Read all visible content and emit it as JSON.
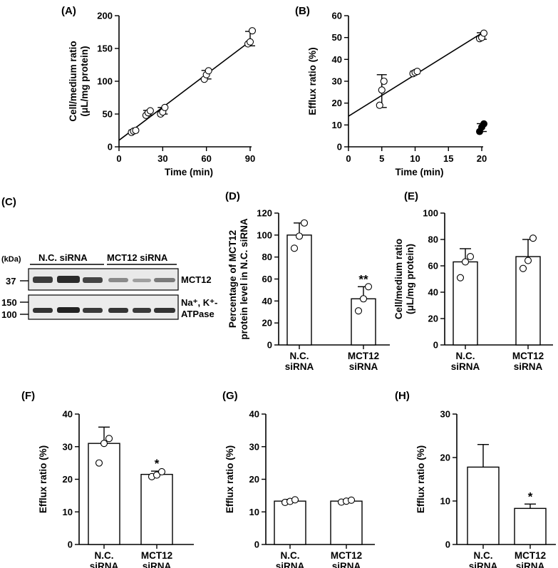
{
  "panels": {
    "A": "(A)",
    "B": "(B)",
    "C": "(C)",
    "D": "(D)",
    "E": "(E)",
    "F": "(F)",
    "G": "(G)",
    "H": "(H)"
  },
  "blot": {
    "kda_label": "(kDa)",
    "lane_group_1": "N.C. siRNA",
    "lane_group_2": "MCT12 siRNA",
    "marker_37": "37",
    "marker_150": "150",
    "marker_100": "100",
    "protein_1": "MCT12",
    "protein_2_line1": "Na⁺, K⁺-",
    "protein_2_line2": "ATPase"
  },
  "chart_data": [
    {
      "id": "A",
      "type": "scatter",
      "xlabel": "Time (min)",
      "ylabel_lines": [
        "Cell/medium ratio",
        "(μL/mg protein)"
      ],
      "xlim": [
        0,
        90
      ],
      "ylim": [
        0,
        200
      ],
      "xticks": [
        0,
        30,
        60,
        90
      ],
      "yticks": [
        0,
        50,
        100,
        150,
        200
      ],
      "fit_line": {
        "x": [
          0,
          90
        ],
        "y": [
          10,
          161
        ]
      },
      "points": [
        {
          "x": 10,
          "values": [
            22,
            24,
            25
          ],
          "mean": 24,
          "sd": 1.5
        },
        {
          "x": 20,
          "values": [
            48,
            52,
            55
          ],
          "mean": 52,
          "sd": 3.5
        },
        {
          "x": 30,
          "values": [
            50,
            53,
            60
          ],
          "mean": 55,
          "sd": 5
        },
        {
          "x": 60,
          "values": [
            103,
            110,
            116
          ],
          "mean": 110,
          "sd": 6.5
        },
        {
          "x": 90,
          "values": [
            157,
            160,
            177
          ],
          "mean": 165,
          "sd": 11
        }
      ]
    },
    {
      "id": "B",
      "type": "scatter",
      "xlabel": "Time (min)",
      "ylabel_lines": [
        "Efflux ratio (%)"
      ],
      "xlim": [
        0,
        20
      ],
      "ylim": [
        0,
        60
      ],
      "xticks": [
        0,
        5,
        10,
        15,
        20
      ],
      "yticks": [
        0,
        10,
        20,
        30,
        40,
        50,
        60
      ],
      "fit_line": {
        "x": [
          0,
          20
        ],
        "y": [
          14,
          52
        ]
      },
      "points": [
        {
          "x": 5,
          "values": [
            19,
            26,
            30
          ],
          "mean": 25.5,
          "sd": 7.5
        },
        {
          "x": 10,
          "values": [
            33.5,
            34,
            34.5
          ],
          "mean": 34,
          "sd": 0.6
        },
        {
          "x": 20,
          "values": [
            49.5,
            50,
            52
          ],
          "mean": 50.7,
          "sd": 1.5
        }
      ],
      "solid_points": [
        {
          "x": 20,
          "values": [
            7,
            9,
            10.5
          ],
          "mean": 8.8,
          "sd": 1.8
        }
      ]
    },
    {
      "id": "D",
      "type": "bar",
      "ylabel_lines": [
        "Percentage of MCT12",
        "protein level in N.C. siRNA"
      ],
      "categories": [
        [
          "N.C.",
          "siRNA"
        ],
        [
          "MCT12",
          "siRNA"
        ]
      ],
      "ylim": [
        0,
        120
      ],
      "yticks": [
        0,
        20,
        40,
        60,
        80,
        100,
        120
      ],
      "values": [
        100,
        42
      ],
      "sd": [
        11,
        11
      ],
      "points": [
        [
          88,
          99,
          111
        ],
        [
          31,
          42,
          53
        ]
      ],
      "significance": [
        "",
        "**"
      ]
    },
    {
      "id": "E",
      "type": "bar",
      "ylabel_lines": [
        "Cell/medium ratio",
        "(μL/mg protein)"
      ],
      "categories": [
        [
          "N.C.",
          "siRNA"
        ],
        [
          "MCT12",
          "siRNA"
        ]
      ],
      "ylim": [
        0,
        100
      ],
      "yticks": [
        0,
        20,
        40,
        60,
        80,
        100
      ],
      "values": [
        63,
        67
      ],
      "sd": [
        10,
        13
      ],
      "points": [
        [
          51,
          63,
          67
        ],
        [
          58,
          64,
          81
        ]
      ],
      "significance": [
        "",
        ""
      ]
    },
    {
      "id": "F",
      "type": "bar",
      "ylabel_lines": [
        "Efflux ratio (%)"
      ],
      "categories": [
        [
          "N.C.",
          "siRNA"
        ],
        [
          "MCT12",
          "siRNA"
        ]
      ],
      "ylim": [
        0,
        40
      ],
      "yticks": [
        0,
        10,
        20,
        30,
        40
      ],
      "values": [
        31,
        21.5
      ],
      "sd": [
        5,
        1
      ],
      "points": [
        [
          25,
          31,
          32.5
        ],
        [
          20.8,
          21.3,
          22.3
        ]
      ],
      "significance": [
        "",
        "*"
      ]
    },
    {
      "id": "G",
      "type": "bar",
      "ylabel_lines": [
        "Efflux ratio (%)"
      ],
      "categories": [
        [
          "N.C.",
          "siRNA"
        ],
        [
          "MCT12",
          "siRNA"
        ]
      ],
      "ylim": [
        0,
        40
      ],
      "yticks": [
        0,
        10,
        20,
        30,
        40
      ],
      "values": [
        13.3,
        13.3
      ],
      "sd": [
        0.5,
        0.4
      ],
      "points": [
        [
          12.9,
          13.2,
          13.7
        ],
        [
          13,
          13.3,
          13.6
        ]
      ],
      "significance": [
        "",
        ""
      ]
    },
    {
      "id": "H",
      "type": "bar",
      "ylabel_lines": [
        "Efflux ratio (%)"
      ],
      "categories": [
        [
          "N.C.",
          "siRNA"
        ],
        [
          "MCT12",
          "siRNA"
        ]
      ],
      "ylim": [
        0,
        30
      ],
      "yticks": [
        0,
        10,
        20,
        30
      ],
      "values": [
        17.8,
        8.3
      ],
      "sd": [
        5.2,
        1
      ],
      "points": [],
      "significance": [
        "",
        "*"
      ]
    }
  ]
}
